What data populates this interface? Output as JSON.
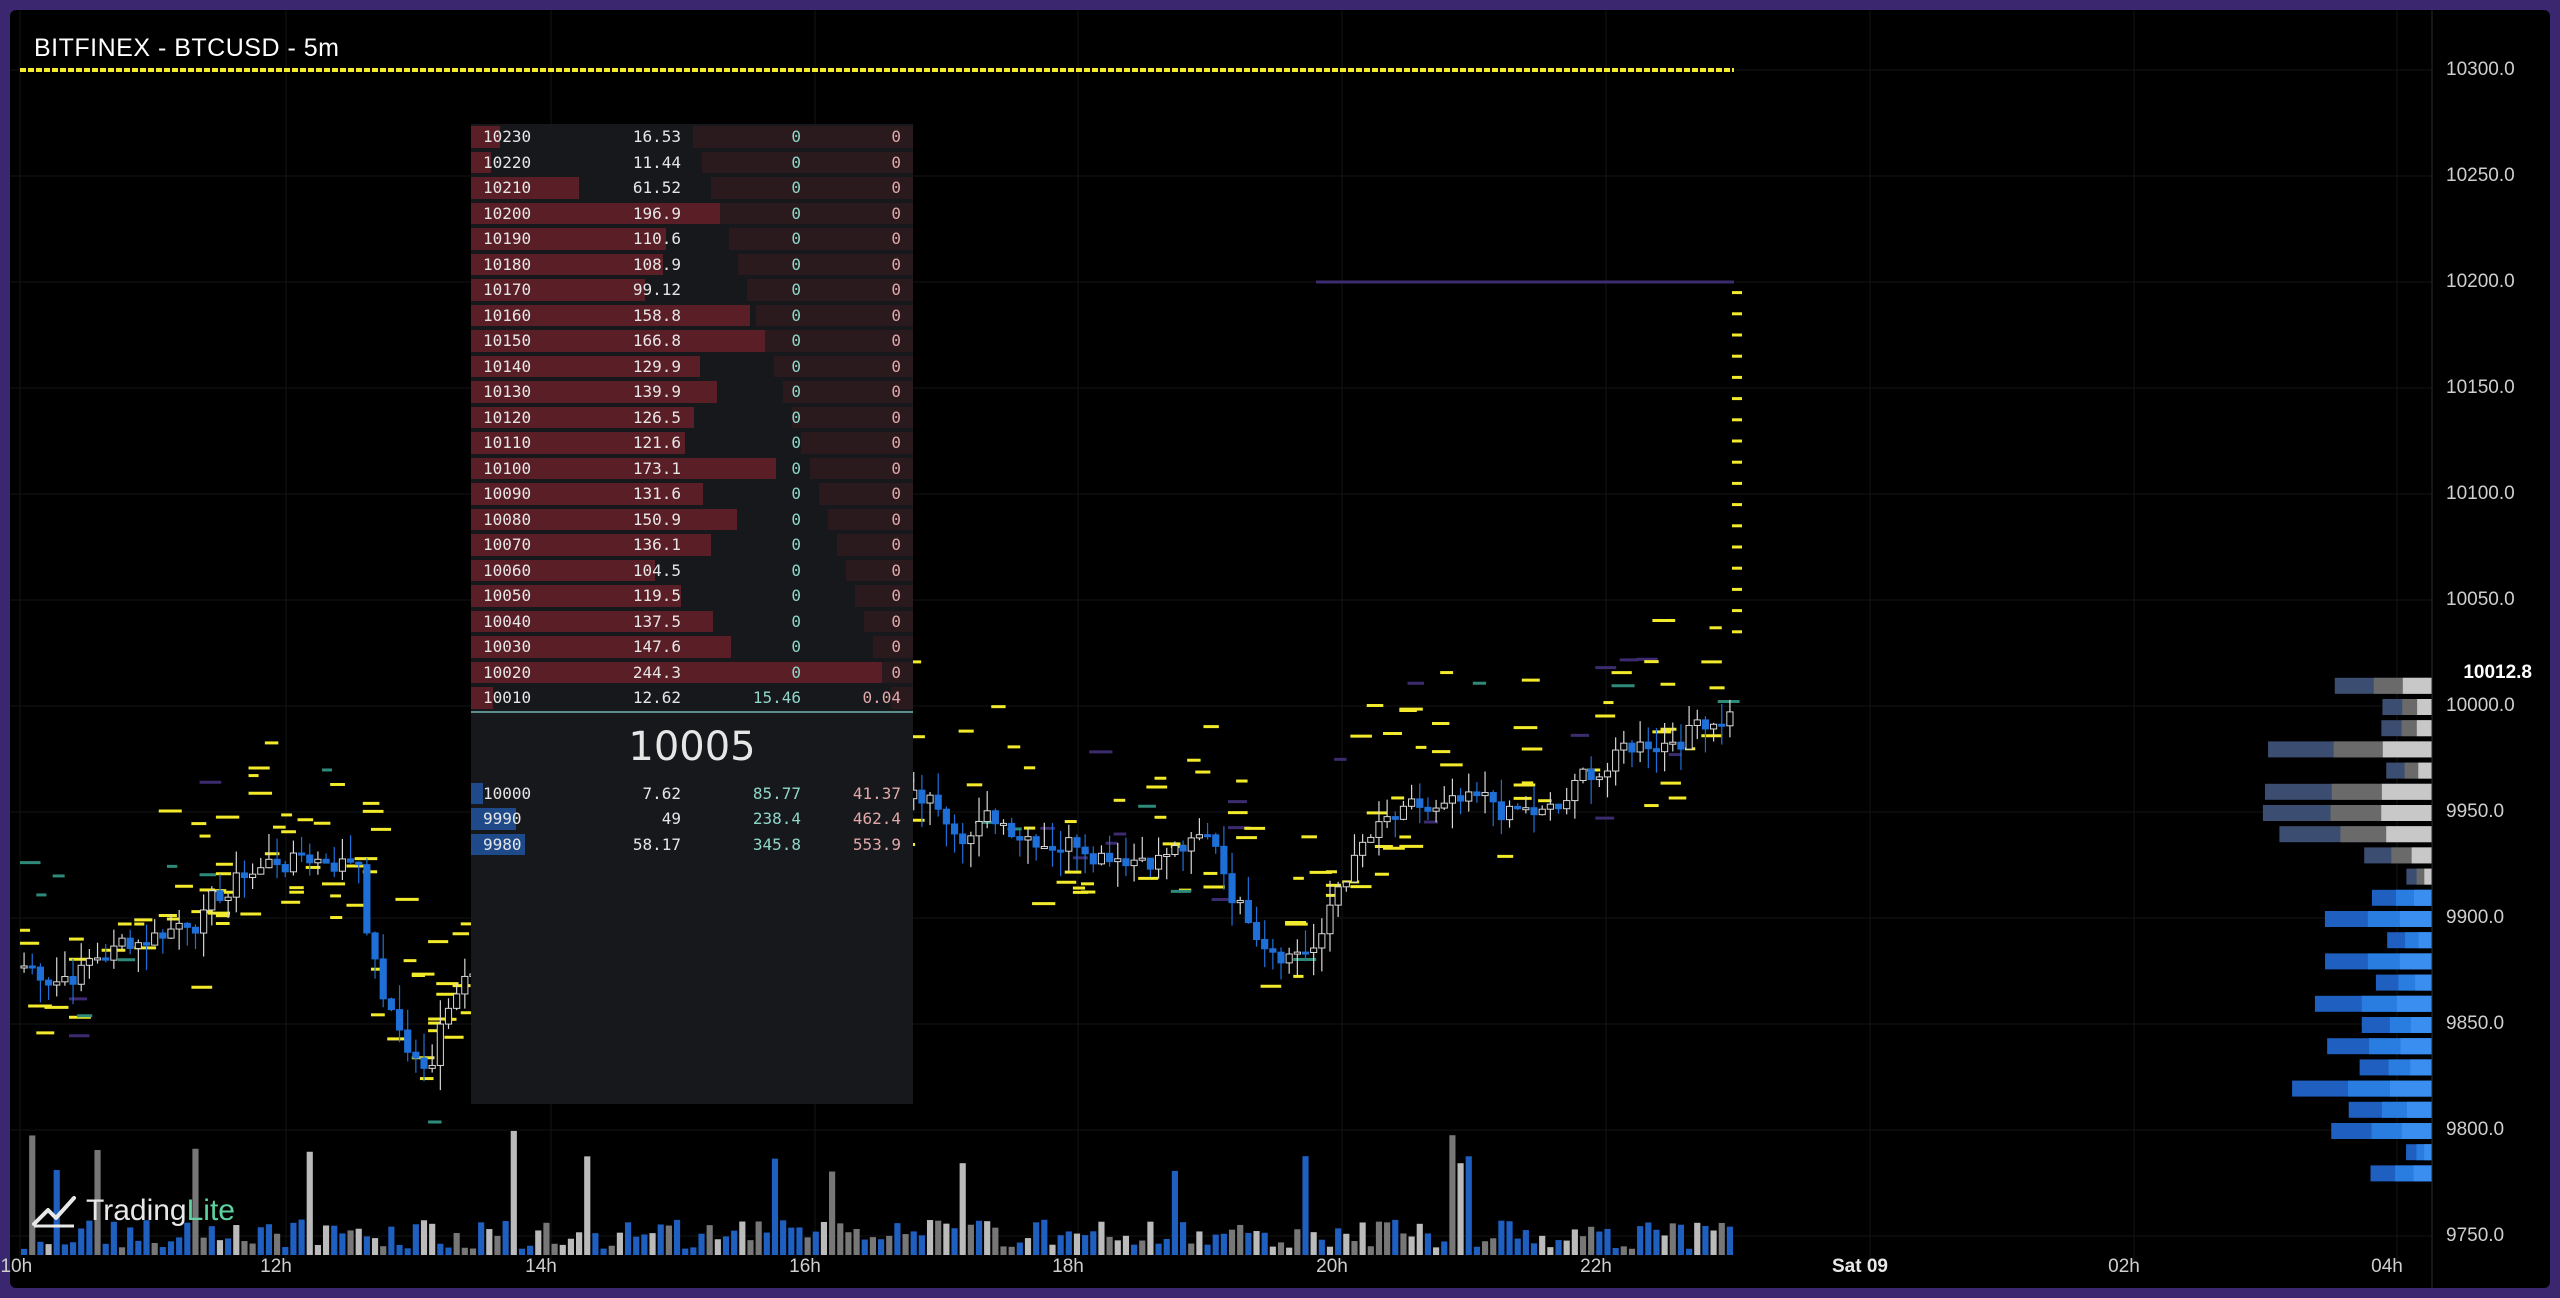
{
  "title": "BITFINEX - BTCUSD - 5m",
  "brand": {
    "name_part1": "Trading",
    "name_part2": "Lite",
    "accent": "#5fd1a0",
    "icon": "tradinglite-logo-icon"
  },
  "last_price": "10012.8",
  "price_axis": [
    "10300.0",
    "10250.0",
    "10200.0",
    "10150.0",
    "10100.0",
    "10050.0",
    "10000.0",
    "9950.0",
    "9900.0",
    "9850.0",
    "9800.0",
    "9750.0"
  ],
  "time_axis": [
    "10h",
    "12h",
    "14h",
    "16h",
    "18h",
    "20h",
    "22h",
    "Sat 09",
    "02h",
    "04h"
  ],
  "orderbook": {
    "mid_price": "10005",
    "asks": [
      {
        "price": "10230",
        "size": "16.53",
        "c3": "0",
        "c4": "0"
      },
      {
        "price": "10220",
        "size": "11.44",
        "c3": "0",
        "c4": "0"
      },
      {
        "price": "10210",
        "size": "61.52",
        "c3": "0",
        "c4": "0"
      },
      {
        "price": "10200",
        "size": "196.9",
        "c3": "0",
        "c4": "0"
      },
      {
        "price": "10190",
        "size": "110.6",
        "c3": "0",
        "c4": "0"
      },
      {
        "price": "10180",
        "size": "108.9",
        "c3": "0",
        "c4": "0"
      },
      {
        "price": "10170",
        "size": "99.12",
        "c3": "0",
        "c4": "0"
      },
      {
        "price": "10160",
        "size": "158.8",
        "c3": "0",
        "c4": "0"
      },
      {
        "price": "10150",
        "size": "166.8",
        "c3": "0",
        "c4": "0"
      },
      {
        "price": "10140",
        "size": "129.9",
        "c3": "0",
        "c4": "0"
      },
      {
        "price": "10130",
        "size": "139.9",
        "c3": "0",
        "c4": "0"
      },
      {
        "price": "10120",
        "size": "126.5",
        "c3": "0",
        "c4": "0"
      },
      {
        "price": "10110",
        "size": "121.6",
        "c3": "0",
        "c4": "0"
      },
      {
        "price": "10100",
        "size": "173.1",
        "c3": "0",
        "c4": "0"
      },
      {
        "price": "10090",
        "size": "131.6",
        "c3": "0",
        "c4": "0"
      },
      {
        "price": "10080",
        "size": "150.9",
        "c3": "0",
        "c4": "0"
      },
      {
        "price": "10070",
        "size": "136.1",
        "c3": "0",
        "c4": "0"
      },
      {
        "price": "10060",
        "size": "104.5",
        "c3": "0",
        "c4": "0"
      },
      {
        "price": "10050",
        "size": "119.5",
        "c3": "0",
        "c4": "0"
      },
      {
        "price": "10040",
        "size": "137.5",
        "c3": "0",
        "c4": "0"
      },
      {
        "price": "10030",
        "size": "147.6",
        "c3": "0",
        "c4": "0"
      },
      {
        "price": "10020",
        "size": "244.3",
        "c3": "0",
        "c4": "0"
      },
      {
        "price": "10010",
        "size": "12.62",
        "c3": "15.46",
        "c4": "0.04"
      }
    ],
    "bids": [
      {
        "price": "10000",
        "size": "7.62",
        "c3": "85.77",
        "c4": "41.37"
      },
      {
        "price": "9990",
        "size": "49",
        "c3": "238.4",
        "c4": "462.4"
      },
      {
        "price": "9980",
        "size": "58.17",
        "c3": "345.8",
        "c4": "553.9"
      }
    ]
  },
  "colors": {
    "ask_bar": "#5a1e26",
    "ask_cum": "#2a1a1e",
    "bid_bar": "#1f4a8a",
    "bull": "#d8d8d8",
    "bear": "#1f6fd8",
    "yellow": "#f2ea2a",
    "purple": "#3c2b6e",
    "green": "#2f8a7a"
  }
}
